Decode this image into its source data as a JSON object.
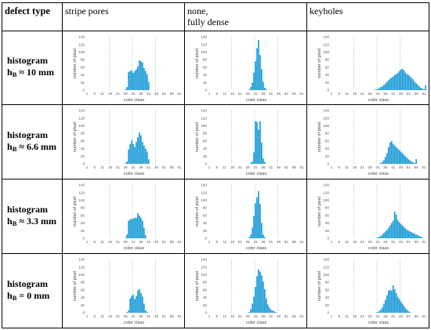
{
  "table": {
    "header": [
      "defect type",
      "stripe pores",
      "none,",
      "fully dense",
      "keyholes"
    ],
    "rows": [
      {
        "label": "histogram",
        "h_main": "h",
        "h_sub": "B",
        "h_val": " ≈ 10 mm"
      },
      {
        "label": "histogram",
        "h_main": "h",
        "h_sub": "B",
        "h_val": " ≈ 6.6 mm"
      },
      {
        "label": "histogram",
        "h_main": "h",
        "h_sub": "B",
        "h_val": " ≈ 3.3 mm"
      },
      {
        "label": "histogram",
        "h_main": "h",
        "h_sub": "B",
        "h_val": " = 0 mm"
      }
    ]
  },
  "chart_data": {
    "type": "bar",
    "xlabel": "color class",
    "ylabel": "number of pixel",
    "ylim": [
      0,
      140
    ],
    "yticks": [
      0,
      20,
      40,
      60,
      80,
      100,
      120,
      140
    ],
    "xticks": [
      1,
      6,
      11,
      16,
      21,
      26,
      31,
      36,
      41,
      46,
      51,
      56,
      61
    ],
    "xlim": [
      1,
      63
    ],
    "bar_color": "#1a9bd7",
    "grid_color": "#8fd0ea",
    "grid_vertical_at": [
      16,
      31,
      46
    ],
    "panels": [
      {
        "row": 0,
        "col": 0,
        "start": 26,
        "values": [
          2,
          8,
          48,
          50,
          52,
          45,
          50,
          55,
          62,
          78,
          76,
          72,
          58,
          50,
          42,
          22
        ]
      },
      {
        "row": 0,
        "col": 1,
        "start": 27,
        "values": [
          2,
          8,
          20,
          46,
          76,
          110,
          132,
          92,
          55,
          22,
          6,
          2
        ]
      },
      {
        "row": 0,
        "col": 2,
        "start": 29,
        "values": [
          1,
          2,
          3,
          5,
          8,
          10,
          14,
          17,
          22,
          26,
          30,
          33,
          36,
          40,
          42,
          45,
          50,
          54,
          56,
          52,
          46,
          42,
          40,
          36,
          32,
          28,
          22,
          18,
          14,
          10,
          6,
          4,
          2,
          12
        ]
      },
      {
        "row": 1,
        "col": 0,
        "start": 26,
        "values": [
          2,
          6,
          38,
          52,
          62,
          52,
          44,
          58,
          70,
          82,
          75,
          58,
          48,
          40,
          32,
          12
        ]
      },
      {
        "row": 1,
        "col": 1,
        "start": 28,
        "values": [
          3,
          6,
          30,
          112,
          110,
          90,
          112,
          56,
          14,
          5
        ]
      },
      {
        "row": 1,
        "col": 2,
        "start": 32,
        "values": [
          1,
          2,
          5,
          10,
          18,
          28,
          44,
          56,
          60,
          52,
          48,
          44,
          40,
          36,
          32,
          28,
          24,
          20,
          16,
          12,
          9,
          6,
          4,
          2,
          12
        ]
      },
      {
        "row": 2,
        "col": 0,
        "start": 26,
        "values": [
          2,
          10,
          46,
          50,
          50,
          52,
          54,
          54,
          66,
          60,
          54,
          46,
          28,
          8
        ]
      },
      {
        "row": 2,
        "col": 1,
        "start": 27,
        "values": [
          3,
          10,
          28,
          58,
          92,
          108,
          124,
          90,
          40,
          10,
          3
        ]
      },
      {
        "row": 2,
        "col": 2,
        "start": 30,
        "values": [
          1,
          2,
          4,
          6,
          10,
          14,
          18,
          22,
          28,
          34,
          40,
          46,
          70,
          62,
          48,
          42,
          38,
          34,
          30,
          26,
          22,
          20,
          18,
          16,
          14,
          12,
          10,
          8,
          6,
          4,
          2
        ]
      },
      {
        "row": 3,
        "col": 0,
        "start": 27,
        "values": [
          2,
          6,
          38,
          44,
          48,
          36,
          44,
          58,
          62,
          52,
          42,
          24,
          6,
          2
        ]
      },
      {
        "row": 3,
        "col": 1,
        "start": 27,
        "values": [
          2,
          10,
          24,
          42,
          68,
          96,
          114,
          108,
          98,
          82,
          62,
          38,
          22,
          14,
          8,
          6,
          4,
          2
        ]
      },
      {
        "row": 3,
        "col": 2,
        "start": 30,
        "values": [
          1,
          2,
          4,
          8,
          14,
          24,
          34,
          46,
          58,
          60,
          58,
          72,
          62,
          52,
          42,
          36,
          30,
          24,
          18,
          12,
          8,
          4,
          2
        ]
      }
    ]
  }
}
